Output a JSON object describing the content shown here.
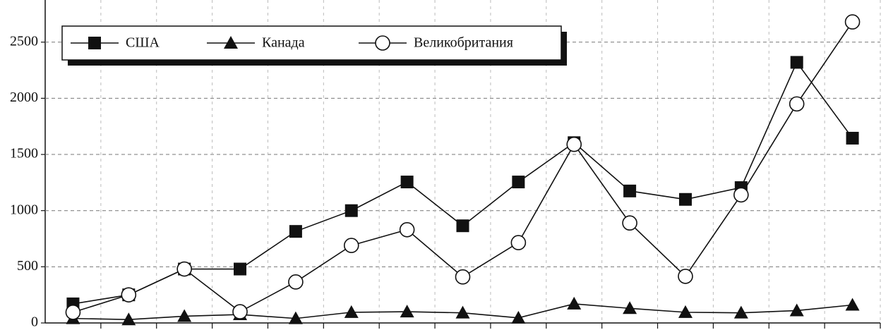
{
  "chart_data": {
    "type": "line",
    "categories": [
      null,
      null,
      null,
      null,
      null,
      null,
      null,
      null,
      null,
      null,
      null,
      null,
      null,
      null,
      null
    ],
    "series": [
      {
        "name": "США",
        "color": "#111111",
        "marker": "square",
        "values": [
          170,
          250,
          480,
          480,
          815,
          1000,
          1255,
          865,
          1255,
          1605,
          1175,
          1100,
          1205,
          2320,
          1645
        ]
      },
      {
        "name": "Канада",
        "color": "#111111",
        "marker": "triangle",
        "values": [
          40,
          30,
          60,
          75,
          40,
          95,
          100,
          90,
          45,
          170,
          130,
          95,
          90,
          110,
          160
        ]
      },
      {
        "name": "Великобритания",
        "color": "#111111",
        "marker": "circle",
        "values": [
          95,
          250,
          480,
          100,
          365,
          690,
          830,
          410,
          715,
          1590,
          890,
          415,
          1140,
          1950,
          2680
        ]
      }
    ],
    "ylim": [
      0,
      2850
    ],
    "yticks": [
      0,
      500,
      1000,
      1500,
      2000,
      2500
    ],
    "grid": true
  }
}
